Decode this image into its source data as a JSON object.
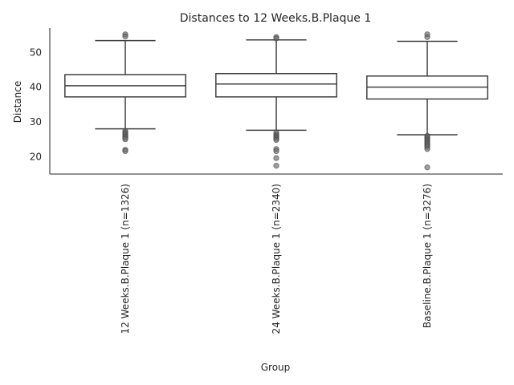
{
  "chart_data": {
    "type": "box",
    "title": "Distances to 12 Weeks.B.Plaque 1",
    "xlabel": "Group",
    "ylabel": "Distance",
    "ylim": [
      15,
      57
    ],
    "yticks": [
      20,
      30,
      40,
      50
    ],
    "grid": false,
    "categories": [
      "12 Weeks.B.Plaque 1 (n=1326)",
      "24 Weeks.B.Plaque 1 (n=2340)",
      "Baseline.B.Plaque 1 (n=3276)"
    ],
    "boxes": [
      {
        "whisker_low": 28.0,
        "q1": 37.2,
        "median": 40.4,
        "q3": 43.6,
        "whisker_high": 53.4,
        "outliers": [
          55.2,
          54.6,
          27.4,
          27.0,
          26.6,
          26.2,
          25.8,
          25.4,
          25.0,
          22.0,
          21.6
        ]
      },
      {
        "whisker_low": 27.6,
        "q1": 37.2,
        "median": 40.9,
        "q3": 43.9,
        "whisker_high": 53.6,
        "outliers": [
          54.4,
          54.0,
          26.9,
          26.4,
          26.0,
          25.6,
          25.2,
          24.8,
          22.2,
          21.6,
          19.6,
          17.4
        ]
      },
      {
        "whisker_low": 26.3,
        "q1": 36.6,
        "median": 40.0,
        "q3": 43.2,
        "whisker_high": 53.2,
        "outliers": [
          55.2,
          54.4,
          26.0,
          25.6,
          25.2,
          24.8,
          24.4,
          24.0,
          23.6,
          23.2,
          22.8,
          22.2,
          16.9
        ]
      }
    ]
  }
}
